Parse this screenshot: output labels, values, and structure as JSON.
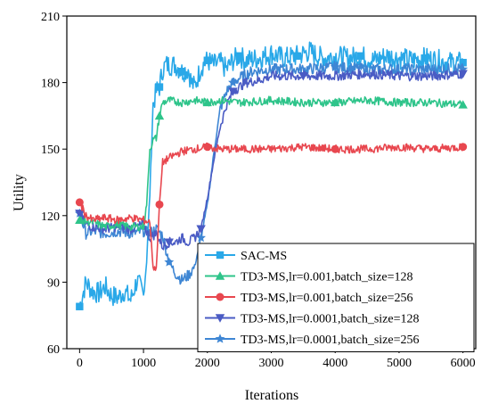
{
  "chart_data": {
    "type": "line",
    "title": "",
    "xlabel": "Iterations",
    "ylabel": "Utility",
    "xlim": [
      -200,
      6200
    ],
    "ylim": [
      60,
      210
    ],
    "xticks": [
      0,
      1000,
      2000,
      3000,
      4000,
      5000,
      6000
    ],
    "yticks": [
      60,
      90,
      120,
      150,
      180,
      210
    ],
    "grid": false,
    "legend_position": "lower-right",
    "series": [
      {
        "name": "SAC-MS",
        "color": "#29a8e8",
        "marker": "square",
        "x": [
          0,
          100,
          200,
          300,
          400,
          500,
          600,
          700,
          800,
          900,
          1000,
          1050,
          1100,
          1150,
          1200,
          1250,
          1300,
          1350,
          1400,
          1500,
          1600,
          1700,
          1750,
          1800,
          1900,
          2000,
          2100,
          2200,
          2300,
          2400,
          2500,
          2600,
          2800,
          3000,
          3200,
          3400,
          3600,
          3800,
          4000,
          4200,
          4400,
          4600,
          4800,
          5000,
          5200,
          5400,
          5600,
          5800,
          6000
        ],
        "y": [
          79,
          90,
          86,
          85,
          88,
          84,
          83,
          86,
          82,
          91,
          84,
          100,
          130,
          170,
          176,
          178,
          186,
          188,
          188,
          188,
          185,
          186,
          180,
          178,
          187,
          190,
          188,
          189,
          186,
          190,
          192,
          190,
          191,
          193,
          191,
          192,
          194,
          191,
          192,
          191,
          192,
          190,
          192,
          191,
          190,
          191,
          190,
          189,
          189
        ]
      },
      {
        "name": "TD3-MS,lr=0.001,batch_size=128",
        "color": "#2ec48a",
        "marker": "triangle-up",
        "x": [
          0,
          200,
          400,
          600,
          800,
          1000,
          1050,
          1100,
          1150,
          1200,
          1250,
          1300,
          1400,
          1600,
          1800,
          2000,
          2200,
          2500,
          3000,
          3500,
          4000,
          4500,
          5000,
          5500,
          6000
        ],
        "y": [
          118,
          117,
          115,
          116,
          115,
          115,
          125,
          150,
          154,
          155,
          165,
          171,
          172,
          171,
          172,
          171,
          172,
          171,
          172,
          171,
          171,
          172,
          171,
          171,
          170
        ]
      },
      {
        "name": "TD3-MS,lr=0.001,batch_size=256",
        "color": "#e8474f",
        "marker": "circle",
        "x": [
          0,
          100,
          200,
          400,
          600,
          800,
          1000,
          1100,
          1150,
          1200,
          1250,
          1300,
          1400,
          1600,
          1800,
          2000,
          2200,
          2500,
          3000,
          3500,
          4000,
          4500,
          5000,
          5500,
          6000
        ],
        "y": [
          126,
          120,
          118,
          119,
          118,
          119,
          118,
          117,
          97,
          96,
          125,
          144,
          146,
          149,
          150,
          151,
          150,
          150,
          150,
          151,
          150,
          150,
          151,
          150,
          151
        ]
      },
      {
        "name": "TD3-MS,lr=0.0001,batch_size=128",
        "color": "#4a5bc4",
        "marker": "triangle-down",
        "x": [
          0,
          100,
          200,
          400,
          600,
          800,
          1000,
          1100,
          1200,
          1300,
          1400,
          1500,
          1600,
          1700,
          1800,
          1900,
          2000,
          2100,
          2200,
          2300,
          2400,
          2500,
          2600,
          2800,
          3000,
          3500,
          4000,
          4500,
          5000,
          5500,
          6000
        ],
        "y": [
          121,
          116,
          115,
          114,
          115,
          114,
          116,
          110,
          112,
          106,
          108,
          108,
          110,
          108,
          110,
          114,
          128,
          145,
          160,
          170,
          176,
          178,
          180,
          181,
          183,
          183,
          183,
          184,
          183,
          183,
          184
        ]
      },
      {
        "name": "TD3-MS,lr=0.0001,batch_size=256",
        "color": "#3e86d4",
        "marker": "star",
        "x": [
          0,
          100,
          200,
          400,
          600,
          800,
          1000,
          1100,
          1200,
          1300,
          1400,
          1500,
          1600,
          1700,
          1800,
          1900,
          2000,
          2100,
          2200,
          2300,
          2400,
          2500,
          2700,
          3000,
          3500,
          4000,
          4500,
          5000,
          5500,
          6000
        ],
        "y": [
          121,
          112,
          113,
          112,
          113,
          112,
          113,
          112,
          114,
          111,
          99,
          94,
          91,
          93,
          97,
          110,
          125,
          148,
          168,
          176,
          180,
          182,
          185,
          186,
          186,
          187,
          186,
          186,
          186,
          186
        ]
      }
    ]
  }
}
